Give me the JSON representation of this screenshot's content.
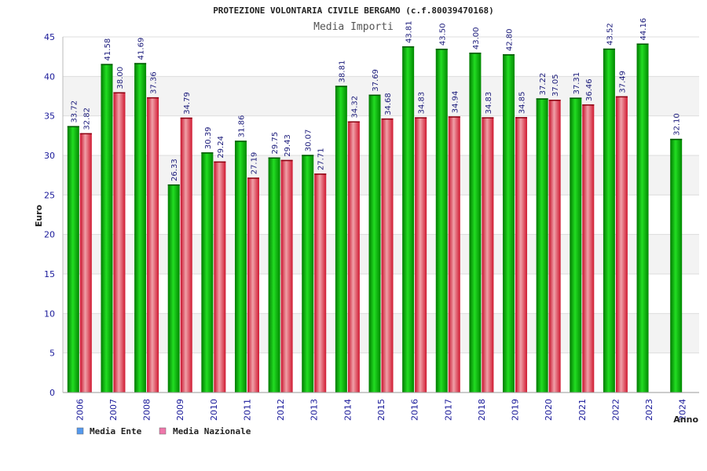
{
  "chart_data": {
    "type": "bar",
    "title": "PROTEZIONE VOLONTARIA CIVILE BERGAMO (c.f.80039470168)",
    "subtitle": "Media Importi",
    "xlabel": "Anno",
    "ylabel": "Euro",
    "ylim": [
      0,
      45
    ],
    "yticks": [
      0,
      5,
      10,
      15,
      20,
      25,
      30,
      35,
      40,
      45
    ],
    "grid": true,
    "legend_position": "bottom-left",
    "categories": [
      "2006",
      "2007",
      "2008",
      "2009",
      "2010",
      "2011",
      "2012",
      "2013",
      "2014",
      "2015",
      "2016",
      "2017",
      "2018",
      "2019",
      "2020",
      "2021",
      "2022",
      "2023",
      "2024"
    ],
    "series": [
      {
        "name": "Media Ente",
        "color": "#11bb11",
        "legend_color": "#5599ee",
        "values": [
          33.72,
          41.58,
          41.69,
          26.33,
          30.39,
          31.86,
          29.75,
          30.07,
          38.81,
          37.69,
          43.81,
          43.5,
          43.0,
          42.8,
          37.22,
          37.31,
          43.52,
          44.16,
          32.1
        ],
        "labels": [
          "33.72",
          "41.58",
          "41.69",
          "26.33",
          "30.39",
          "31.86",
          "29.75",
          "30.07",
          "38.81",
          "37.69",
          "43.81",
          "43.50",
          "43.00",
          "42.80",
          "37.22",
          "37.31",
          "43.52",
          "44.16",
          "32.10"
        ]
      },
      {
        "name": "Media Nazionale",
        "color": "#e63344",
        "legend_color": "#ee77aa",
        "values": [
          32.82,
          38.0,
          37.36,
          34.79,
          29.24,
          27.19,
          29.43,
          27.71,
          34.32,
          34.68,
          34.83,
          34.94,
          34.83,
          34.85,
          37.05,
          36.46,
          37.49,
          null,
          null
        ],
        "labels": [
          "32.82",
          "38.00",
          "37.36",
          "34.79",
          "29.24",
          "27.19",
          "29.43",
          "27.71",
          "34.32",
          "34.68",
          "34.83",
          "34.94",
          "34.83",
          "34.85",
          "37.05",
          "36.46",
          "37.49",
          null,
          null
        ]
      }
    ]
  }
}
